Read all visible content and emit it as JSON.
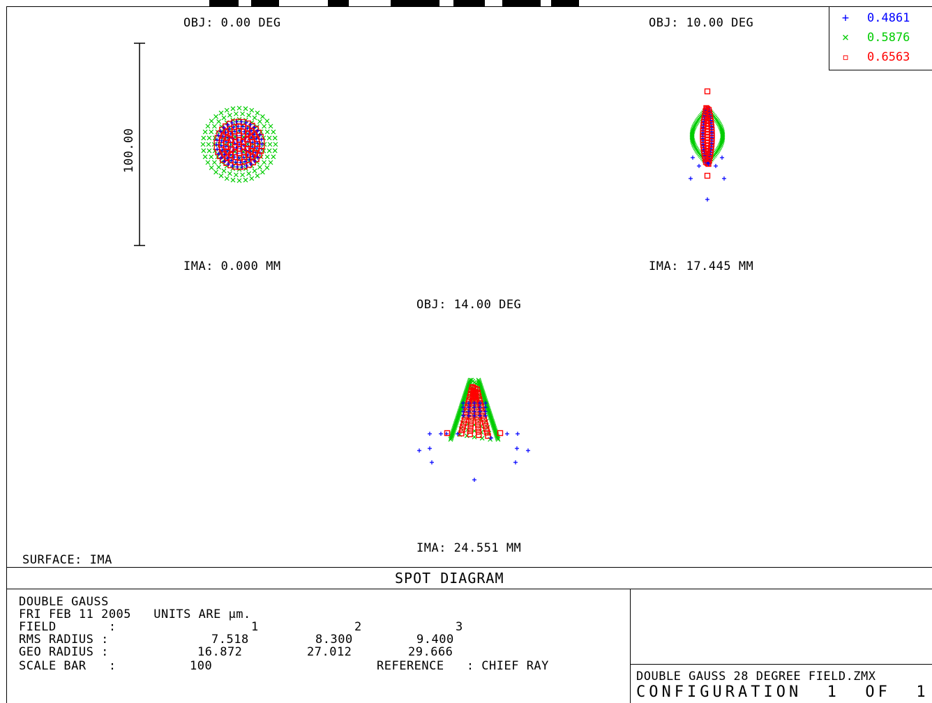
{
  "legend": [
    {
      "symbol": "+",
      "wavelength": "0.4861",
      "color": "#0000ff"
    },
    {
      "symbol": "×",
      "wavelength": "0.5876",
      "color": "#00cc00"
    },
    {
      "symbol": "▫",
      "wavelength": "0.6563",
      "color": "#ff0000"
    }
  ],
  "fields": [
    {
      "obj": "OBJ: 0.00 DEG",
      "ima": "IMA: 0.000 MM"
    },
    {
      "obj": "OBJ: 10.00 DEG",
      "ima": "IMA: 17.445 MM"
    },
    {
      "obj": "OBJ: 14.00 DEG",
      "ima": "IMA: 24.551 MM"
    }
  ],
  "scale_bar_label": "100.00",
  "surface": "SURFACE: IMA",
  "plot_title": "SPOT DIAGRAM",
  "info": {
    "lens_name": "DOUBLE GAUSS",
    "date_units": "FRI FEB 11 2005   UNITS ARE µm.",
    "field_label": "FIELD       :",
    "field_values": [
      "1",
      "2",
      "3"
    ],
    "rms_label": "RMS RADIUS :",
    "rms_values": [
      "7.518",
      "8.300",
      "9.400"
    ],
    "geo_label": "GEO RADIUS :",
    "geo_values": [
      "16.872",
      "27.012",
      "29.666"
    ],
    "scale_label": "SCALE BAR   :",
    "scale_value": "100",
    "reference": "REFERENCE   : CHIEF RAY"
  },
  "file_name": "DOUBLE GAUSS 28 DEGREE FIELD.ZMX",
  "configuration": "CONFIGURATION  1  OF  1"
}
